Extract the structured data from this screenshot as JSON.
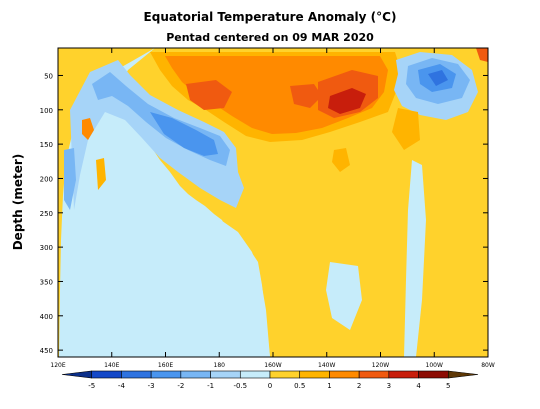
{
  "chart_data": {
    "type": "heatmap",
    "title": "Equatorial Temperature Anomaly (°C)",
    "subtitle": "Pentad centered on 09 MAR 2020",
    "xlabel": "",
    "ylabel": "Depth (meter)",
    "x_axis": {
      "ticks": [
        "120E",
        "140E",
        "160E",
        "180",
        "160W",
        "140W",
        "120W",
        "100W",
        "80W"
      ],
      "lon_east": [
        120,
        140,
        160,
        180,
        200,
        220,
        240,
        260,
        280
      ]
    },
    "y_axis": {
      "ticks": [
        50,
        100,
        150,
        200,
        250,
        300,
        350,
        400,
        450
      ],
      "ylim": [
        460,
        10
      ],
      "inverted": true
    },
    "colorbar": {
      "labels": [
        "-5",
        "-4",
        "-3",
        "-2",
        "-1",
        "-0.5",
        "0",
        "0.5",
        "1",
        "2",
        "3",
        "4",
        "5"
      ],
      "bounds": [
        -5,
        -4,
        -3,
        -2,
        -1,
        -0.5,
        0,
        0.5,
        1,
        2,
        3,
        4,
        5
      ],
      "colors": [
        "#0b2f8a",
        "#1448c8",
        "#2f73e0",
        "#4a95ee",
        "#78b6f4",
        "#a6d4f8",
        "#c6ecfa",
        "#ffd22c",
        "#ffb400",
        "#ff8a00",
        "#f05a10",
        "#c81e0c",
        "#8c0c04",
        "#5e3806"
      ]
    },
    "features": [
      {
        "label": "warm surface layer",
        "lon": [
          160,
          240
        ],
        "depth": [
          10,
          140
        ],
        "anomaly": 2
      },
      {
        "label": "warm core",
        "lon": [
          225,
          245
        ],
        "depth": [
          70,
          110
        ],
        "anomaly": 3
      },
      {
        "label": "warm core",
        "lon": [
          170,
          190
        ],
        "depth": [
          75,
          100
        ],
        "anomaly": 2.5
      },
      {
        "label": "cold core east",
        "lon": [
          255,
          275
        ],
        "depth": [
          25,
          90
        ],
        "anomaly": -2.5
      },
      {
        "label": "cold thermocline tongue",
        "lon": [
          135,
          200
        ],
        "depth": [
          50,
          190
        ],
        "anomaly": -1.5
      },
      {
        "label": "warm subsurface",
        "lon": [
          190,
          280
        ],
        "depth": [
          150,
          460
        ],
        "anomaly": 0.6
      }
    ]
  }
}
